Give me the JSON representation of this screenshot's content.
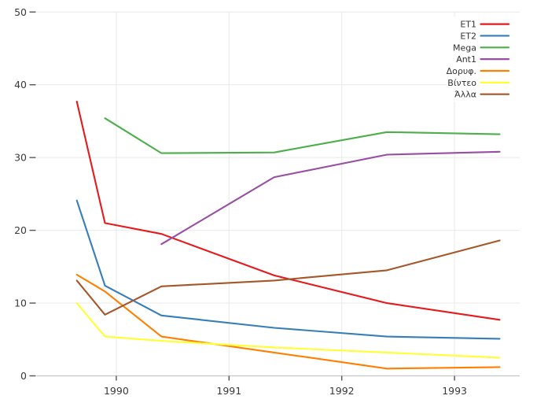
{
  "figure": {
    "background_color": "#ffffff",
    "grid_color": "#e9e9e9",
    "spine_color": "#c6c6c6",
    "tick_color": "#555555",
    "tick_label_color": "#3a3a3a",
    "legend_text_color": "#333333"
  },
  "chart_data": {
    "type": "line",
    "title": "",
    "xlabel": "",
    "ylabel": "",
    "x": [
      1989.65,
      1989.9,
      1990.4,
      1991.4,
      1992.4,
      1993.4
    ],
    "series": [
      {
        "name": "ET1",
        "color": "#e41a1c",
        "values": [
          37.7,
          21.0,
          19.5,
          13.8,
          10.0,
          7.7
        ]
      },
      {
        "name": "ET2",
        "color": "#377eb8",
        "values": [
          24.1,
          12.4,
          8.3,
          6.6,
          5.4,
          5.1
        ]
      },
      {
        "name": "Mega",
        "color": "#4daf4a",
        "values": [
          null,
          35.4,
          30.6,
          30.7,
          33.5,
          33.2
        ]
      },
      {
        "name": "Ant1",
        "color": "#984ea3",
        "values": [
          null,
          null,
          18.1,
          27.3,
          30.4,
          30.8
        ]
      },
      {
        "name": "Δορυφ.",
        "color": "#ff7f00",
        "values": [
          13.9,
          11.6,
          5.4,
          3.2,
          1.0,
          1.2
        ]
      },
      {
        "name": "Βίντεο",
        "color": "#ffff33",
        "values": [
          10.0,
          5.4,
          4.8,
          3.9,
          3.2,
          2.5
        ]
      },
      {
        "name": "Άλλα",
        "color": "#a65628",
        "values": [
          13.1,
          8.4,
          12.3,
          13.1,
          14.5,
          18.6
        ]
      }
    ],
    "xticks": [
      1990,
      1991,
      1992,
      1993
    ],
    "xtick_labels": [
      "1990",
      "1991",
      "1992",
      "1993"
    ],
    "yticks": [
      0,
      10,
      20,
      30,
      40,
      50
    ],
    "ytick_labels": [
      "0",
      "10",
      "20",
      "30",
      "40",
      "50"
    ],
    "xlim": [
      1989.293,
      1993.578
    ],
    "ylim": [
      0,
      50
    ],
    "grid": true,
    "legend_position": "upper right"
  }
}
